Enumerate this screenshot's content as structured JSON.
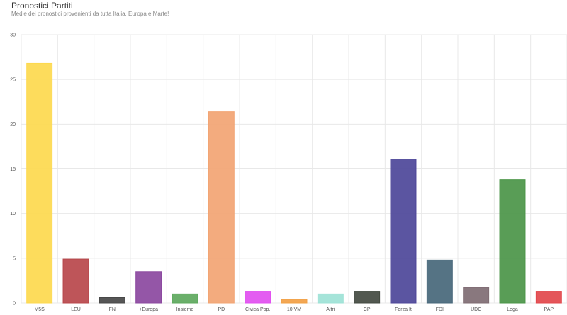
{
  "chart_data": {
    "type": "bar",
    "title": "Pronostici Partiti",
    "subtitle": "Medie dei pronostici provenienti da tutta Italia, Europa e Marte!",
    "xlabel": "",
    "ylabel": "",
    "ylim": [
      0,
      30
    ],
    "yticks": [
      0,
      5,
      10,
      15,
      20,
      25,
      30
    ],
    "grid": true,
    "categories": [
      "M5S",
      "LEU",
      "FN",
      "+Europa",
      "Insieme",
      "PD",
      "Civica Pop.",
      "10 VM",
      "Altri",
      "CP",
      "Forza It",
      "FDI",
      "UDC",
      "Lega",
      "PAP"
    ],
    "values": [
      26.8,
      4.9,
      0.6,
      3.5,
      1.0,
      21.4,
      1.3,
      0.4,
      1.0,
      1.3,
      16.1,
      4.8,
      1.7,
      13.8,
      1.3
    ],
    "colors": [
      "#fdd94e",
      "#b8474b",
      "#484848",
      "#8b489f",
      "#5da85d",
      "#f2a473",
      "#e14ff0",
      "#f2a045",
      "#9de2d6",
      "#434a41",
      "#4d4699",
      "#47677a",
      "#7f6c73",
      "#4b9548",
      "#e2474b"
    ]
  }
}
